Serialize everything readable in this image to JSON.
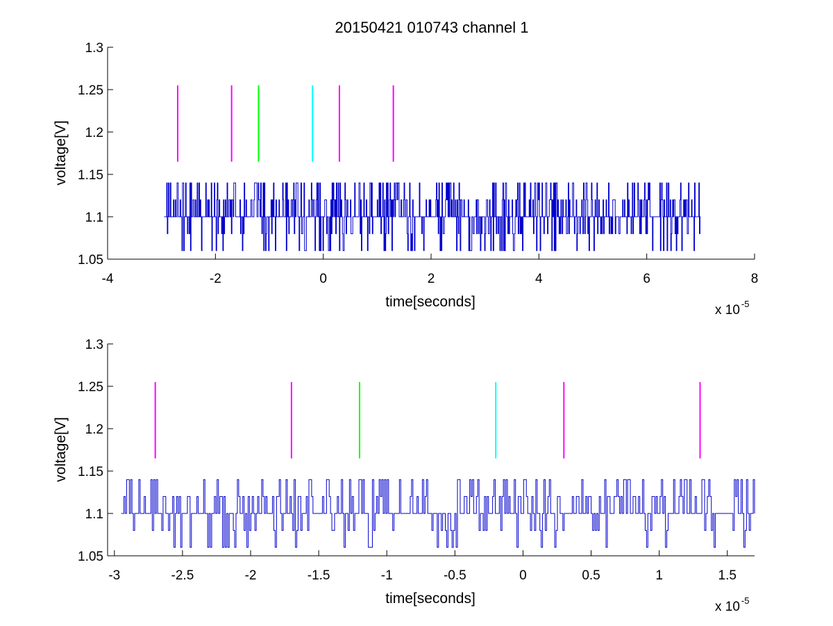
{
  "chart_data": [
    {
      "type": "line",
      "title": "20150421 010743 channel 1",
      "xlabel": "time[seconds]",
      "ylabel": "voltage[V]",
      "x_multiplier": "x 10",
      "x_exponent": "-5",
      "xlim": [
        -4e-05,
        8e-05
      ],
      "ylim": [
        1.05,
        1.3
      ],
      "xticks": [
        -4e-05,
        -2e-05,
        0,
        2e-05,
        4e-05,
        6e-05,
        8e-05
      ],
      "xtick_labels": [
        "-4",
        "-2",
        "0",
        "2",
        "4",
        "6",
        "8"
      ],
      "yticks": [
        1.05,
        1.1,
        1.15,
        1.2,
        1.25,
        1.3
      ],
      "ytick_labels": [
        "1.05",
        "1.1",
        "1.15",
        "1.2",
        "1.25",
        "1.3"
      ],
      "grid": false,
      "signal": {
        "color": "#0000cc",
        "x_start": -2.95e-05,
        "x_end": 7e-05,
        "baseline": 1.1,
        "levels": [
          1.06,
          1.08,
          1.1,
          1.12,
          1.14
        ],
        "seed": 11,
        "samples": 880
      },
      "markers": [
        {
          "x": -2.7e-05,
          "y0": 1.165,
          "y1": 1.255,
          "color": "#ff00ff"
        },
        {
          "x": -1.7e-05,
          "y0": 1.165,
          "y1": 1.255,
          "color": "#ff00ff"
        },
        {
          "x": -1.2e-05,
          "y0": 1.165,
          "y1": 1.255,
          "color": "#00ff00"
        },
        {
          "x": -2e-06,
          "y0": 1.165,
          "y1": 1.255,
          "color": "#00ffff"
        },
        {
          "x": 3e-06,
          "y0": 1.165,
          "y1": 1.255,
          "color": "#ff00ff"
        },
        {
          "x": 1.3e-05,
          "y0": 1.165,
          "y1": 1.255,
          "color": "#ff00ff"
        }
      ]
    },
    {
      "type": "line",
      "title": "",
      "xlabel": "time[seconds]",
      "ylabel": "voltage[V]",
      "x_multiplier": "x 10",
      "x_exponent": "-5",
      "xlim": [
        -3.05e-05,
        1.7e-05
      ],
      "ylim": [
        1.05,
        1.3
      ],
      "xticks": [
        -3e-05,
        -2.5e-05,
        -2e-05,
        -1.5e-05,
        -1e-05,
        -5e-06,
        0,
        5e-06,
        1e-05,
        1.5e-05
      ],
      "xtick_labels": [
        "-3",
        "-2.5",
        "-2",
        "-1.5",
        "-1",
        "-0.5",
        "0",
        "0.5",
        "1",
        "1.5"
      ],
      "yticks": [
        1.05,
        1.1,
        1.15,
        1.2,
        1.25,
        1.3
      ],
      "ytick_labels": [
        "1.05",
        "1.1",
        "1.15",
        "1.2",
        "1.25",
        "1.3"
      ],
      "grid": false,
      "signal": {
        "color": "#0000cc",
        "x_start": -2.95e-05,
        "x_end": 1.7e-05,
        "baseline": 1.1,
        "levels": [
          1.06,
          1.08,
          1.1,
          1.12,
          1.14
        ],
        "seed": 23,
        "samples": 470
      },
      "markers": [
        {
          "x": -2.7e-05,
          "y0": 1.165,
          "y1": 1.255,
          "color": "#ff00ff"
        },
        {
          "x": -1.7e-05,
          "y0": 1.165,
          "y1": 1.255,
          "color": "#ff00ff"
        },
        {
          "x": -1.2e-05,
          "y0": 1.165,
          "y1": 1.255,
          "color": "#00ff00"
        },
        {
          "x": -2e-06,
          "y0": 1.165,
          "y1": 1.255,
          "color": "#00ffff"
        },
        {
          "x": 3e-06,
          "y0": 1.165,
          "y1": 1.255,
          "color": "#ff00ff"
        },
        {
          "x": 1.3e-05,
          "y0": 1.165,
          "y1": 1.255,
          "color": "#ff00ff"
        }
      ]
    }
  ]
}
